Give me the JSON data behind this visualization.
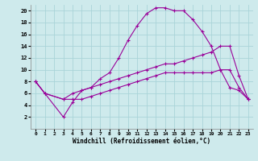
{
  "xlabel": "Windchill (Refroidissement éolien,°C)",
  "background_color": "#ceeaec",
  "line_color": "#990099",
  "xlim": [
    -0.5,
    23.5
  ],
  "ylim": [
    0,
    21
  ],
  "xticks": [
    0,
    1,
    2,
    3,
    4,
    5,
    6,
    7,
    8,
    9,
    10,
    11,
    12,
    13,
    14,
    15,
    16,
    17,
    18,
    19,
    20,
    21,
    22,
    23
  ],
  "yticks": [
    2,
    4,
    6,
    8,
    10,
    12,
    14,
    16,
    18,
    20
  ],
  "grid_color": "#aad4d8",
  "series": [
    {
      "x": [
        0,
        1,
        3,
        4,
        5,
        6,
        7,
        8,
        9,
        10,
        11,
        12,
        13,
        14,
        15,
        16,
        17,
        18,
        19,
        20,
        21,
        22,
        23
      ],
      "y": [
        8,
        6,
        5,
        5,
        5,
        5.5,
        6,
        6.5,
        7,
        7.5,
        8,
        8.5,
        9,
        9.5,
        9.5,
        9.5,
        9.5,
        9.5,
        9.5,
        10,
        10,
        7,
        5
      ]
    },
    {
      "x": [
        0,
        1,
        3,
        4,
        5,
        6,
        7,
        8,
        9,
        10,
        11,
        12,
        13,
        14,
        15,
        16,
        17,
        18,
        19,
        20,
        21,
        22,
        23
      ],
      "y": [
        8,
        6,
        5,
        6,
        6.5,
        7,
        7.5,
        8,
        8.5,
        9,
        9.5,
        10,
        10.5,
        11,
        11,
        11.5,
        12,
        12.5,
        13,
        14,
        14,
        9,
        5
      ]
    },
    {
      "x": [
        0,
        1,
        3,
        4,
        5,
        6,
        7,
        8,
        9,
        10,
        11,
        12,
        13,
        14,
        15,
        16,
        17,
        18,
        19,
        20,
        21,
        22,
        23
      ],
      "y": [
        8,
        6,
        2,
        4.5,
        6.5,
        7,
        8.5,
        9.5,
        12,
        15,
        17.5,
        19.5,
        20.5,
        20.5,
        20,
        20,
        18.5,
        16.5,
        14,
        10,
        7,
        6.5,
        5
      ]
    }
  ]
}
